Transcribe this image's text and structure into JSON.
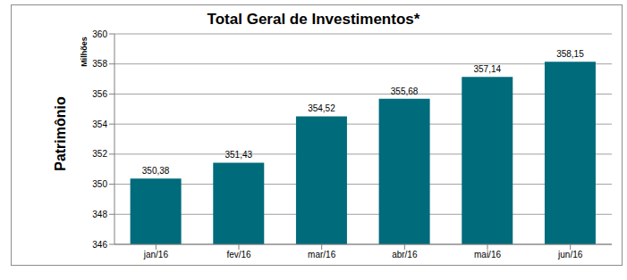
{
  "chart_data": {
    "type": "bar",
    "title": "Total Geral de Investimentos*",
    "ylabel": "Patrimônio",
    "annotations": [
      "Milhões"
    ],
    "categories": [
      "jan/16",
      "fev/16",
      "mar/16",
      "abr/16",
      "mai/16",
      "jun/16"
    ],
    "values": [
      350.38,
      351.43,
      354.52,
      355.68,
      357.14,
      358.15
    ],
    "value_labels": [
      "350,38",
      "351,43",
      "354,52",
      "355,68",
      "357,14",
      "358,15"
    ],
    "color": "#006b7b",
    "ylim": [
      346,
      360
    ],
    "yticks": [
      346,
      348,
      350,
      352,
      354,
      356,
      358,
      360
    ],
    "grid": true,
    "data_labels": true
  }
}
